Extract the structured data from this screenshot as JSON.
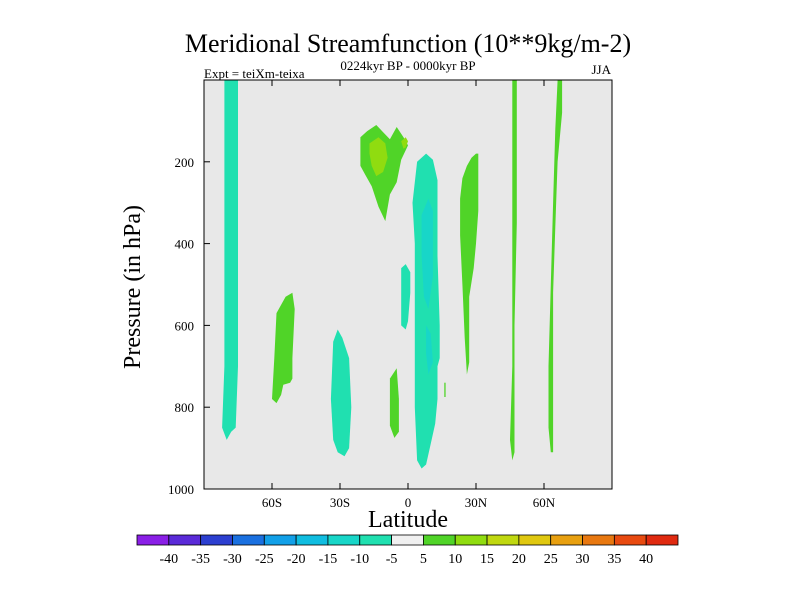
{
  "chart_data": {
    "type": "contour",
    "title": "Meridional Streamfunction (10**9kg/m-2)",
    "subtitle_left": "Expt = teiXm-teixa",
    "subtitle_center": "0224kyr BP - 0000kyr BP",
    "subtitle_right": "JJA",
    "xlabel": "Latitude",
    "ylabel": "Pressure (in hPa)",
    "xlim": [
      -90,
      90
    ],
    "ylim": [
      0,
      1000
    ],
    "y_inverted": true,
    "x_ticks": [
      {
        "value": -60,
        "label": "60S"
      },
      {
        "value": -30,
        "label": "30S"
      },
      {
        "value": 0,
        "label": "0"
      },
      {
        "value": 30,
        "label": "30N"
      },
      {
        "value": 60,
        "label": "60N"
      }
    ],
    "y_ticks": [
      {
        "value": 200,
        "label": "200"
      },
      {
        "value": 400,
        "label": "400"
      },
      {
        "value": 600,
        "label": "600"
      },
      {
        "value": 800,
        "label": "800"
      },
      {
        "value": 1000,
        "label": "1000"
      }
    ],
    "background_color": "#e8e8e8",
    "colorbar": {
      "labels": [
        "-40",
        "-35",
        "-30",
        "-25",
        "-20",
        "-15",
        "-10",
        "-5",
        "5",
        "10",
        "15",
        "20",
        "25",
        "30",
        "35",
        "40"
      ],
      "colors": [
        "#8a1fe6",
        "#5a2ad8",
        "#2c3fd0",
        "#1a70e0",
        "#12a0e8",
        "#10bde0",
        "#18d6c8",
        "#20e0b0",
        "#f0f0f0",
        "#50d428",
        "#90dc10",
        "#c0d810",
        "#e0c810",
        "#e8a010",
        "#e87810",
        "#e84a10",
        "#e02a10"
      ]
    },
    "regions": [
      {
        "name": "sh-polar-column",
        "level": "-5",
        "color": "#20e0b0",
        "points": [
          [
            -81,
            0
          ],
          [
            -75,
            0
          ],
          [
            -75,
            700
          ],
          [
            -76,
            850
          ],
          [
            -78,
            860
          ],
          [
            -80,
            880
          ],
          [
            -82,
            850
          ],
          [
            -81,
            700
          ]
        ]
      },
      {
        "name": "sh-midlat-cell",
        "level": "5",
        "color": "#50d428",
        "points": [
          [
            -58,
            570
          ],
          [
            -54,
            530
          ],
          [
            -51,
            520
          ],
          [
            -50,
            560
          ],
          [
            -51,
            680
          ],
          [
            -51,
            730
          ],
          [
            -52,
            740
          ],
          [
            -55,
            745
          ],
          [
            -56,
            770
          ],
          [
            -58,
            790
          ],
          [
            -60,
            780
          ],
          [
            -59,
            680
          ]
        ]
      },
      {
        "name": "sh-subtropical-cell",
        "level": "-5",
        "color": "#20e0b0",
        "points": [
          [
            -33,
            640
          ],
          [
            -31,
            610
          ],
          [
            -29,
            630
          ],
          [
            -26,
            680
          ],
          [
            -25,
            800
          ],
          [
            -26,
            900
          ],
          [
            -28,
            920
          ],
          [
            -31,
            910
          ],
          [
            -33,
            880
          ],
          [
            -34,
            780
          ]
        ]
      },
      {
        "name": "upper-tropical-cell",
        "level": "5",
        "color": "#50d428",
        "points": [
          [
            -21,
            140
          ],
          [
            -18,
            125
          ],
          [
            -14,
            110
          ],
          [
            -8,
            145
          ],
          [
            -5,
            115
          ],
          [
            -2,
            140
          ],
          [
            0,
            160
          ],
          [
            -3,
            195
          ],
          [
            -5,
            250
          ],
          [
            -8,
            280
          ],
          [
            -10,
            345
          ],
          [
            -13,
            310
          ],
          [
            -16,
            260
          ],
          [
            -19,
            230
          ],
          [
            -21,
            210
          ]
        ]
      },
      {
        "name": "upper-tropical-core",
        "level": "10",
        "color": "#90dc10",
        "points": [
          [
            -17,
            155
          ],
          [
            -13,
            140
          ],
          [
            -10,
            155
          ],
          [
            -9,
            190
          ],
          [
            -11,
            225
          ],
          [
            -14,
            235
          ],
          [
            -16,
            210
          ],
          [
            -17,
            180
          ]
        ]
      },
      {
        "name": "upper-tropical-core-small",
        "level": "10",
        "color": "#90dc10",
        "points": [
          [
            -3,
            150
          ],
          [
            -1,
            140
          ],
          [
            0,
            150
          ],
          [
            -1,
            165
          ],
          [
            -2,
            168
          ]
        ]
      },
      {
        "name": "lower-tropical-cell",
        "level": "5",
        "color": "#50d428",
        "points": [
          [
            -8,
            730
          ],
          [
            -5,
            705
          ],
          [
            -4,
            780
          ],
          [
            -4,
            860
          ],
          [
            -6,
            875
          ],
          [
            -8,
            845
          ],
          [
            -8,
            790
          ]
        ]
      },
      {
        "name": "tropical-negative-column",
        "level": "-5",
        "color": "#20e0b0",
        "points": [
          [
            4,
            200
          ],
          [
            8,
            180
          ],
          [
            11,
            195
          ],
          [
            13,
            245
          ],
          [
            13,
            430
          ],
          [
            14,
            600
          ],
          [
            14,
            680
          ],
          [
            13,
            700
          ],
          [
            13,
            780
          ],
          [
            12,
            840
          ],
          [
            10,
            890
          ],
          [
            8,
            940
          ],
          [
            6,
            950
          ],
          [
            4,
            930
          ],
          [
            3,
            800
          ],
          [
            3,
            600
          ],
          [
            3,
            400
          ],
          [
            2,
            300
          ]
        ]
      },
      {
        "name": "tropical-negative-left",
        "level": "-5",
        "color": "#20e0b0",
        "points": [
          [
            -3,
            460
          ],
          [
            -1,
            450
          ],
          [
            1,
            470
          ],
          [
            1,
            520
          ],
          [
            0,
            590
          ],
          [
            -1,
            610
          ],
          [
            -3,
            600
          ],
          [
            -3,
            540
          ]
        ]
      },
      {
        "name": "tropical-negative-core",
        "level": "-10",
        "color": "#18d6c8",
        "points": [
          [
            6,
            330
          ],
          [
            9,
            290
          ],
          [
            11,
            320
          ],
          [
            11,
            480
          ],
          [
            9,
            560
          ],
          [
            7,
            530
          ],
          [
            6,
            430
          ]
        ]
      },
      {
        "name": "tropical-negative-core-lower",
        "level": "-10",
        "color": "#18d6c8",
        "points": [
          [
            8,
            600
          ],
          [
            10,
            620
          ],
          [
            11,
            690
          ],
          [
            9,
            720
          ],
          [
            8,
            670
          ]
        ]
      },
      {
        "name": "nh-subtropical-cell",
        "level": "5",
        "color": "#50d428",
        "points": [
          [
            24,
            240
          ],
          [
            26,
            210
          ],
          [
            28,
            190
          ],
          [
            30,
            180
          ],
          [
            31,
            180
          ],
          [
            31,
            320
          ],
          [
            30,
            400
          ],
          [
            29,
            460
          ],
          [
            27,
            530
          ],
          [
            27,
            690
          ],
          [
            26,
            720
          ],
          [
            25,
            630
          ],
          [
            24,
            500
          ],
          [
            23,
            380
          ],
          [
            23,
            290
          ]
        ]
      },
      {
        "name": "nh-small-speck",
        "level": "5",
        "color": "#50d428",
        "points": [
          [
            16,
            740
          ],
          [
            16.6,
            740
          ],
          [
            16.6,
            775
          ],
          [
            16,
            775
          ]
        ]
      },
      {
        "name": "nh-midlat-column",
        "level": "5",
        "color": "#50d428",
        "points": [
          [
            46,
            0
          ],
          [
            48,
            0
          ],
          [
            48,
            350
          ],
          [
            47,
            600
          ],
          [
            47,
            800
          ],
          [
            47,
            910
          ],
          [
            46,
            930
          ],
          [
            45,
            880
          ],
          [
            46,
            700
          ]
        ]
      },
      {
        "name": "nh-highlat-column",
        "level": "5",
        "color": "#50d428",
        "points": [
          [
            66,
            0
          ],
          [
            68,
            0
          ],
          [
            68,
            80
          ],
          [
            66,
            200
          ],
          [
            65,
            360
          ],
          [
            64,
            520
          ],
          [
            64,
            730
          ],
          [
            64,
            870
          ],
          [
            64,
            910
          ],
          [
            63,
            910
          ],
          [
            62,
            850
          ],
          [
            62,
            700
          ],
          [
            63,
            500
          ],
          [
            64,
            300
          ],
          [
            65,
            120
          ]
        ]
      }
    ]
  }
}
